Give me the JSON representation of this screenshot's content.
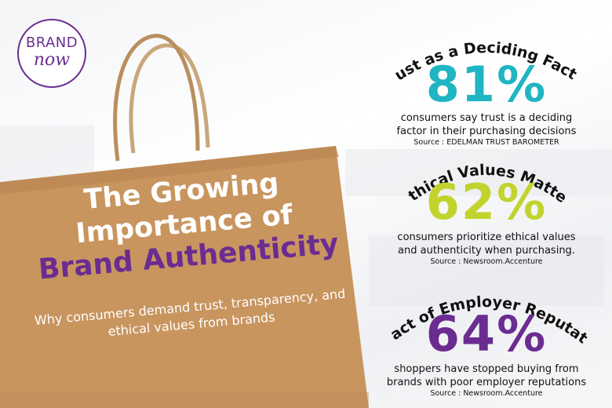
{
  "logo": {
    "brand": "BRAND",
    "now": "now"
  },
  "main": {
    "title_line1": "The Growing",
    "title_line2": "Importance of",
    "title_line3": "Brand Authenticity",
    "subtitle_line1": "Why consumers demand trust, transparency, and",
    "subtitle_line2": "ethical values from brands"
  },
  "stats": [
    {
      "heading": "Trust as a Deciding Factor",
      "percent": "81%",
      "color": "#1fb5c2",
      "desc_line1": "consumers say trust is a deciding",
      "desc_line2": "factor in their purchasing decisions",
      "source": "Source : EDELMAN TRUST BAROMETER"
    },
    {
      "heading": "Ethical Values Matter",
      "percent": "62%",
      "color": "#c2d32e",
      "desc_line1": "consumers prioritize ethical values",
      "desc_line2": "and authenticity when purchasing.",
      "source": "Source : Newsroom.Accenture"
    },
    {
      "heading": "Impact of Employer Reputation",
      "percent": "64%",
      "color": "#6b2c91",
      "desc_line1": "shoppers have stopped buying from",
      "desc_line2": "brands with poor employer reputations",
      "source": "Source : Newsroom.Accenture"
    }
  ],
  "colors": {
    "bag": "#c8955f",
    "bag_shadow": "#b07f4c",
    "brand_purple": "#6b2c91"
  }
}
